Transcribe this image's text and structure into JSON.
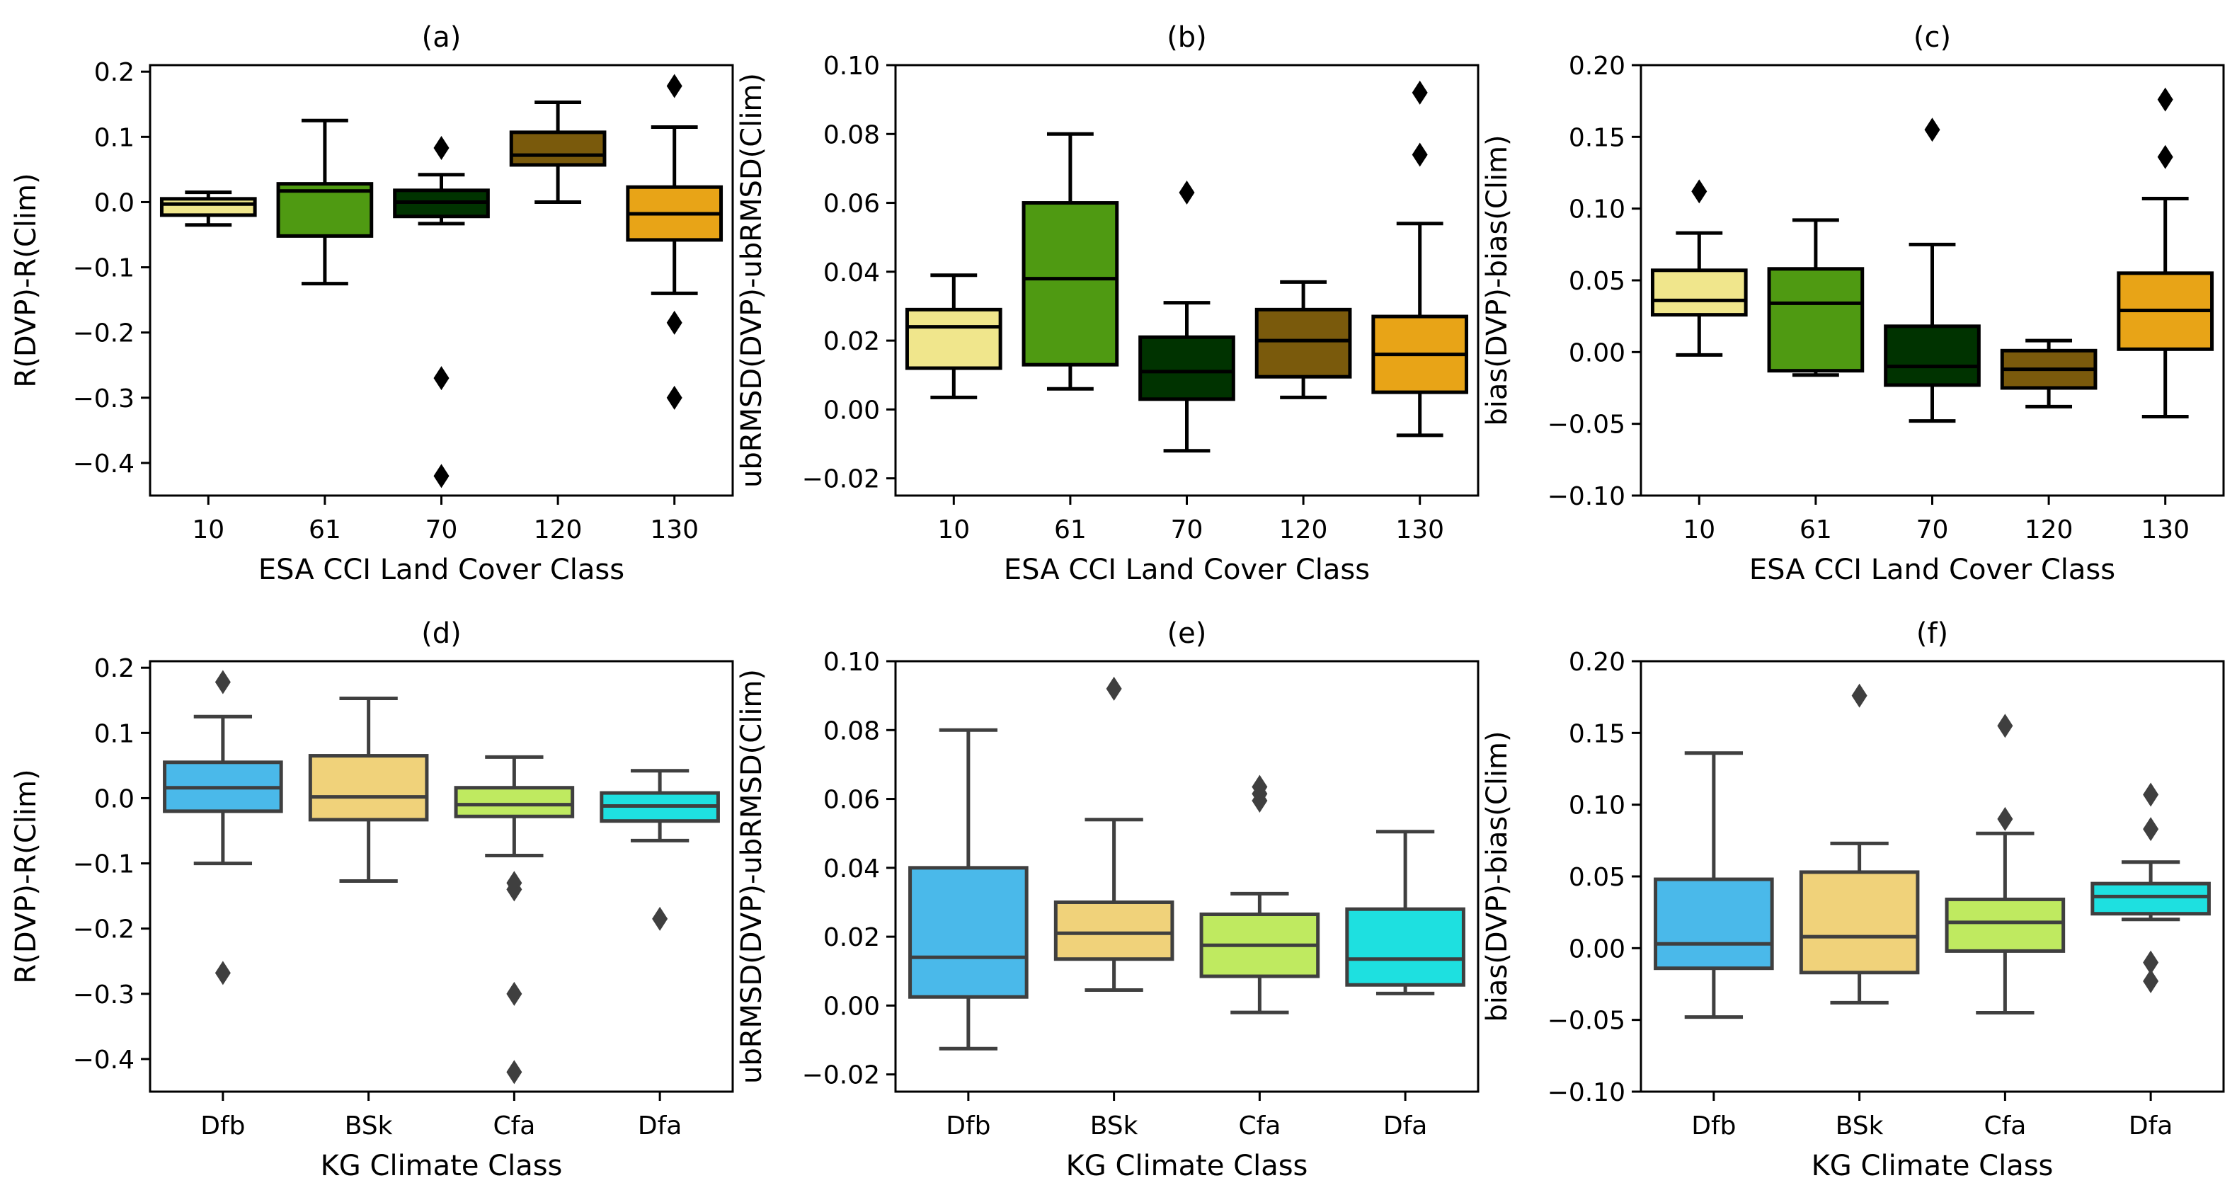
{
  "chart_data": [
    {
      "type": "box",
      "title": "(a)",
      "xlabel": "ESA CCI Land Cover Class",
      "ylabel": "R(DVP)-R(Clim)",
      "ylim": [
        -0.45,
        0.21
      ],
      "yticks": [
        -0.4,
        -0.3,
        -0.2,
        -0.1,
        0.0,
        0.1,
        0.2
      ],
      "ytick_labels": [
        "−0.4",
        "−0.3",
        "−0.2",
        "−0.1",
        "0.0",
        "0.1",
        "0.2"
      ],
      "line_color": "#000000",
      "categories": [
        "10",
        "61",
        "70",
        "120",
        "130"
      ],
      "boxes": [
        {
          "category": "10",
          "color": "#f0e68c",
          "whislo": -0.035,
          "q1": -0.02,
          "med": -0.003,
          "q3": 0.005,
          "whishi": 0.015,
          "fliers": []
        },
        {
          "category": "61",
          "color": "#4f9a12",
          "whislo": -0.125,
          "q1": -0.052,
          "med": 0.017,
          "q3": 0.028,
          "whishi": 0.125,
          "fliers": []
        },
        {
          "category": "70",
          "color": "#003300",
          "whislo": -0.033,
          "q1": -0.022,
          "med": 0.0,
          "q3": 0.018,
          "whishi": 0.042,
          "fliers": [
            0.083,
            -0.27,
            -0.42
          ]
        },
        {
          "category": "120",
          "color": "#7a5a0c",
          "whislo": 0.0,
          "q1": 0.057,
          "med": 0.072,
          "q3": 0.107,
          "whishi": 0.153,
          "fliers": []
        },
        {
          "category": "130",
          "color": "#e8a417",
          "whislo": -0.14,
          "q1": -0.058,
          "med": -0.018,
          "q3": 0.023,
          "whishi": 0.115,
          "fliers": [
            0.178,
            -0.185,
            -0.3
          ]
        }
      ]
    },
    {
      "type": "box",
      "title": "(b)",
      "xlabel": "ESA CCI Land Cover Class",
      "ylabel": "ubRMSD(DVP)-ubRMSD(Clim)",
      "ylim": [
        -0.025,
        0.1
      ],
      "yticks": [
        -0.02,
        0.0,
        0.02,
        0.04,
        0.06,
        0.08,
        0.1
      ],
      "ytick_labels": [
        "−0.02",
        "0.00",
        "0.02",
        "0.04",
        "0.06",
        "0.08",
        "0.10"
      ],
      "line_color": "#000000",
      "categories": [
        "10",
        "61",
        "70",
        "120",
        "130"
      ],
      "boxes": [
        {
          "category": "10",
          "color": "#f0e68c",
          "whislo": 0.0035,
          "q1": 0.012,
          "med": 0.024,
          "q3": 0.029,
          "whishi": 0.039,
          "fliers": []
        },
        {
          "category": "61",
          "color": "#4f9a12",
          "whislo": 0.006,
          "q1": 0.013,
          "med": 0.038,
          "q3": 0.06,
          "whishi": 0.08,
          "fliers": []
        },
        {
          "category": "70",
          "color": "#003300",
          "whislo": -0.012,
          "q1": 0.003,
          "med": 0.011,
          "q3": 0.021,
          "whishi": 0.031,
          "fliers": [
            0.063
          ]
        },
        {
          "category": "120",
          "color": "#7a5a0c",
          "whislo": 0.0035,
          "q1": 0.0095,
          "med": 0.02,
          "q3": 0.029,
          "whishi": 0.037,
          "fliers": []
        },
        {
          "category": "130",
          "color": "#e8a417",
          "whislo": -0.0075,
          "q1": 0.005,
          "med": 0.016,
          "q3": 0.027,
          "whishi": 0.054,
          "fliers": [
            0.074,
            0.092
          ]
        }
      ]
    },
    {
      "type": "box",
      "title": "(c)",
      "xlabel": "ESA CCI Land Cover Class",
      "ylabel": "bias(DVP)-bias(Clim)",
      "ylim": [
        -0.1,
        0.2
      ],
      "yticks": [
        -0.1,
        -0.05,
        0.0,
        0.05,
        0.1,
        0.15,
        0.2
      ],
      "ytick_labels": [
        "−0.10",
        "−0.05",
        "0.00",
        "0.05",
        "0.10",
        "0.15",
        "0.20"
      ],
      "line_color": "#000000",
      "categories": [
        "10",
        "61",
        "70",
        "120",
        "130"
      ],
      "boxes": [
        {
          "category": "10",
          "color": "#f0e68c",
          "whislo": -0.002,
          "q1": 0.026,
          "med": 0.036,
          "q3": 0.057,
          "whishi": 0.083,
          "fliers": [
            0.112
          ]
        },
        {
          "category": "61",
          "color": "#4f9a12",
          "whislo": -0.016,
          "q1": -0.013,
          "med": 0.034,
          "q3": 0.058,
          "whishi": 0.092,
          "fliers": []
        },
        {
          "category": "70",
          "color": "#003300",
          "whislo": -0.048,
          "q1": -0.023,
          "med": -0.01,
          "q3": 0.018,
          "whishi": 0.075,
          "fliers": [
            0.155
          ]
        },
        {
          "category": "120",
          "color": "#7a5a0c",
          "whislo": -0.038,
          "q1": -0.025,
          "med": -0.012,
          "q3": 0.001,
          "whishi": 0.008,
          "fliers": []
        },
        {
          "category": "130",
          "color": "#e8a417",
          "whislo": -0.045,
          "q1": 0.002,
          "med": 0.029,
          "q3": 0.055,
          "whishi": 0.107,
          "fliers": [
            0.136,
            0.176
          ]
        }
      ]
    },
    {
      "type": "box",
      "title": "(d)",
      "xlabel": "KG Climate Class",
      "ylabel": "R(DVP)-R(Clim)",
      "ylim": [
        -0.45,
        0.21
      ],
      "yticks": [
        -0.4,
        -0.3,
        -0.2,
        -0.1,
        0.0,
        0.1,
        0.2
      ],
      "ytick_labels": [
        "−0.4",
        "−0.3",
        "−0.2",
        "−0.1",
        "0.0",
        "0.1",
        "0.2"
      ],
      "line_color": "#3f3f3f",
      "categories": [
        "Dfb",
        "BSk",
        "Cfa",
        "Dfa"
      ],
      "boxes": [
        {
          "category": "Dfb",
          "color": "#4ab9ea",
          "whislo": -0.1,
          "q1": -0.02,
          "med": 0.016,
          "q3": 0.055,
          "whishi": 0.125,
          "fliers": [
            0.178,
            -0.268
          ]
        },
        {
          "category": "BSk",
          "color": "#f0d27a",
          "whislo": -0.127,
          "q1": -0.033,
          "med": 0.002,
          "q3": 0.065,
          "whishi": 0.153,
          "fliers": []
        },
        {
          "category": "Cfa",
          "color": "#bfea60",
          "whislo": -0.088,
          "q1": -0.028,
          "med": -0.01,
          "q3": 0.016,
          "whishi": 0.063,
          "fliers": [
            -0.13,
            -0.14,
            -0.3,
            -0.42
          ]
        },
        {
          "category": "Dfa",
          "color": "#1ee0e0",
          "whislo": -0.065,
          "q1": -0.035,
          "med": -0.012,
          "q3": 0.008,
          "whishi": 0.042,
          "fliers": [
            -0.185
          ]
        }
      ]
    },
    {
      "type": "box",
      "title": "(e)",
      "xlabel": "KG Climate Class",
      "ylabel": "ubRMSD(DVP)-ubRMSD(Clim)",
      "ylim": [
        -0.025,
        0.1
      ],
      "yticks": [
        -0.02,
        0.0,
        0.02,
        0.04,
        0.06,
        0.08,
        0.1
      ],
      "ytick_labels": [
        "−0.02",
        "0.00",
        "0.02",
        "0.04",
        "0.06",
        "0.08",
        "0.10"
      ],
      "line_color": "#3f3f3f",
      "categories": [
        "Dfb",
        "BSk",
        "Cfa",
        "Dfa"
      ],
      "boxes": [
        {
          "category": "Dfb",
          "color": "#4ab9ea",
          "whislo": -0.0125,
          "q1": 0.0025,
          "med": 0.014,
          "q3": 0.04,
          "whishi": 0.08,
          "fliers": []
        },
        {
          "category": "BSk",
          "color": "#f0d27a",
          "whislo": 0.0045,
          "q1": 0.0135,
          "med": 0.021,
          "q3": 0.03,
          "whishi": 0.054,
          "fliers": [
            0.092
          ]
        },
        {
          "category": "Cfa",
          "color": "#bfea60",
          "whislo": -0.002,
          "q1": 0.0085,
          "med": 0.0175,
          "q3": 0.0265,
          "whishi": 0.0325,
          "fliers": [
            0.0595,
            0.0615,
            0.0635
          ]
        },
        {
          "category": "Dfa",
          "color": "#1ee0e0",
          "whislo": 0.0035,
          "q1": 0.006,
          "med": 0.0135,
          "q3": 0.028,
          "whishi": 0.0505,
          "fliers": []
        }
      ]
    },
    {
      "type": "box",
      "title": "(f)",
      "xlabel": "KG Climate Class",
      "ylabel": "bias(DVP)-bias(Clim)",
      "ylim": [
        -0.1,
        0.2
      ],
      "yticks": [
        -0.1,
        -0.05,
        0.0,
        0.05,
        0.1,
        0.15,
        0.2
      ],
      "ytick_labels": [
        "−0.10",
        "−0.05",
        "0.00",
        "0.05",
        "0.10",
        "0.15",
        "0.20"
      ],
      "line_color": "#3f3f3f",
      "categories": [
        "Dfb",
        "BSk",
        "Cfa",
        "Dfa"
      ],
      "boxes": [
        {
          "category": "Dfb",
          "color": "#4ab9ea",
          "whislo": -0.048,
          "q1": -0.014,
          "med": 0.003,
          "q3": 0.048,
          "whishi": 0.136,
          "fliers": []
        },
        {
          "category": "BSk",
          "color": "#f0d27a",
          "whislo": -0.038,
          "q1": -0.017,
          "med": 0.008,
          "q3": 0.053,
          "whishi": 0.073,
          "fliers": [
            0.176
          ]
        },
        {
          "category": "Cfa",
          "color": "#bfea60",
          "whislo": -0.045,
          "q1": -0.002,
          "med": 0.018,
          "q3": 0.034,
          "whishi": 0.08,
          "fliers": [
            0.09,
            0.155
          ]
        },
        {
          "category": "Dfa",
          "color": "#1ee0e0",
          "whislo": 0.02,
          "q1": 0.024,
          "med": 0.036,
          "q3": 0.045,
          "whishi": 0.06,
          "fliers": [
            0.107,
            0.083,
            -0.01,
            -0.023
          ]
        }
      ]
    }
  ]
}
